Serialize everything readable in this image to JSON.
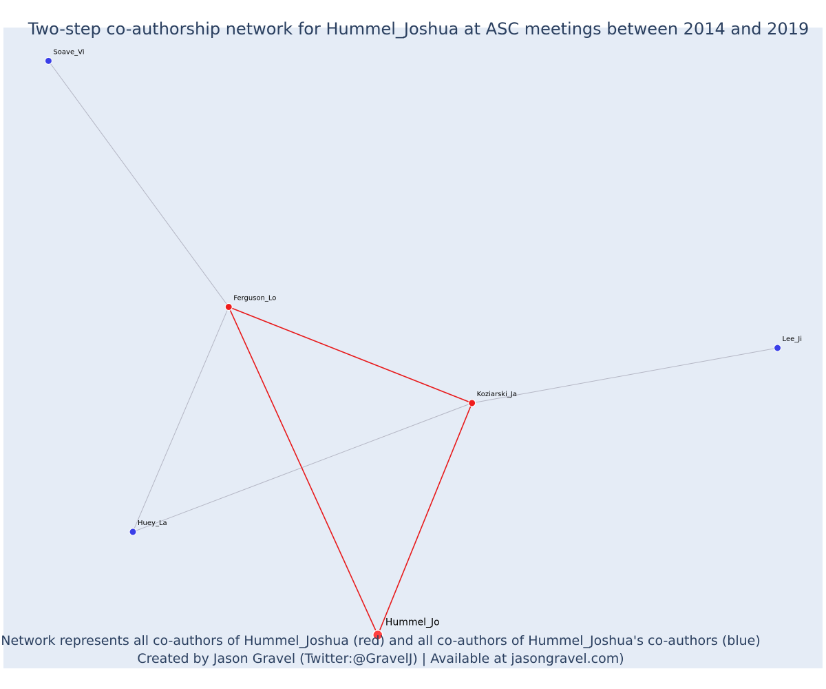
{
  "title": "Two-step co-authorship network for Hummel_Joshua at ASC meetings between 2014 and 2019",
  "annotation": {
    "line1": "Network represents all co-authors of Hummel_Joshua (red) and all co-authors of Hummel_Joshua's co-authors (blue)",
    "line2": "Created by Jason Gravel (Twitter:@GravelJ) | Available at jasongravel.com)"
  },
  "colors": {
    "plot_background": "#e5ecf6",
    "text": "#2a3f5f",
    "focal_node": "#ff4040",
    "direct_coauthor": "#ef1c1c",
    "second_step": "#3a3fe8",
    "direct_edge": "#e8191a",
    "second_step_edge": "#b4b6c4"
  },
  "chart_data": {
    "type": "network",
    "xlim": [
      0,
      1
    ],
    "ylim": [
      0,
      1
    ],
    "nodes": [
      {
        "id": "Soave_Vi",
        "label": "Soave_Vi",
        "group": "second_step",
        "x": 0.055,
        "y": 0.948
      },
      {
        "id": "Ferguson_Lo",
        "label": "Ferguson_Lo",
        "group": "direct",
        "x": 0.275,
        "y": 0.564
      },
      {
        "id": "Lee_Ji",
        "label": "Lee_Ji",
        "group": "second_step",
        "x": 0.945,
        "y": 0.5
      },
      {
        "id": "Koziarski_Ja",
        "label": "Koziarski_Ja",
        "group": "direct",
        "x": 0.572,
        "y": 0.414
      },
      {
        "id": "Huey_La",
        "label": "Huey_La",
        "group": "second_step",
        "x": 0.158,
        "y": 0.213
      },
      {
        "id": "Hummel_Jo",
        "label": "Hummel_Jo",
        "group": "focal",
        "x": 0.457,
        "y": 0.052
      }
    ],
    "edges": [
      {
        "source": "Ferguson_Lo",
        "target": "Soave_Vi",
        "type": "second_step"
      },
      {
        "source": "Ferguson_Lo",
        "target": "Huey_La",
        "type": "second_step"
      },
      {
        "source": "Koziarski_Ja",
        "target": "Huey_La",
        "type": "second_step"
      },
      {
        "source": "Koziarski_Ja",
        "target": "Lee_Ji",
        "type": "second_step"
      },
      {
        "source": "Ferguson_Lo",
        "target": "Koziarski_Ja",
        "type": "direct"
      },
      {
        "source": "Ferguson_Lo",
        "target": "Hummel_Jo",
        "type": "direct"
      },
      {
        "source": "Koziarski_Ja",
        "target": "Hummel_Jo",
        "type": "direct"
      }
    ]
  }
}
